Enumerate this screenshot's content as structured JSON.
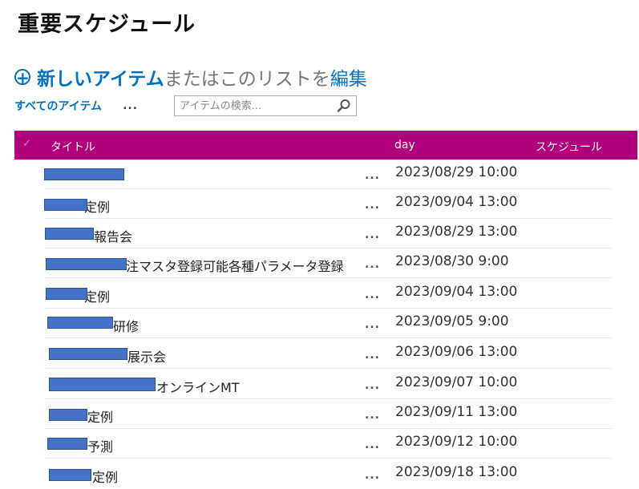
{
  "page_title": "重要スケジュール",
  "actions": {
    "new_item": "新しいアイテム",
    "or_text": "またはこのリストを",
    "edit": "編集"
  },
  "view": {
    "name": "すべてのアイテム",
    "more": "..."
  },
  "search": {
    "placeholder": "アイテムの検索..."
  },
  "columns": {
    "title": "タイトル",
    "day": "day",
    "schedule": "スケジュール"
  },
  "rows": [
    {
      "title": "",
      "more": "...",
      "day": "2023/08/29 10:00"
    },
    {
      "title": "定例",
      "more": "...",
      "day": "2023/09/04 13:00"
    },
    {
      "title": "報告会",
      "more": "...",
      "day": "2023/08/29 13:00"
    },
    {
      "title": "注マスタ登録可能各種パラメータ登録",
      "more": "...",
      "day": "2023/08/30 9:00"
    },
    {
      "title": "定例",
      "more": "...",
      "day": "2023/09/04 13:00"
    },
    {
      "title": "研修",
      "more": "...",
      "day": "2023/09/05 9:00"
    },
    {
      "title": "展示会",
      "more": "...",
      "day": "2023/09/06 13:00"
    },
    {
      "title": "オンラインMT",
      "more": "...",
      "day": "2023/09/07 10:00"
    },
    {
      "title": "定例",
      "more": "...",
      "day": "2023/09/11 13:00"
    },
    {
      "title": "予測",
      "more": "...",
      "day": "2023/09/12 10:00"
    },
    {
      "title": "定例",
      "more": "...",
      "day": "2023/09/18 13:00"
    }
  ]
}
